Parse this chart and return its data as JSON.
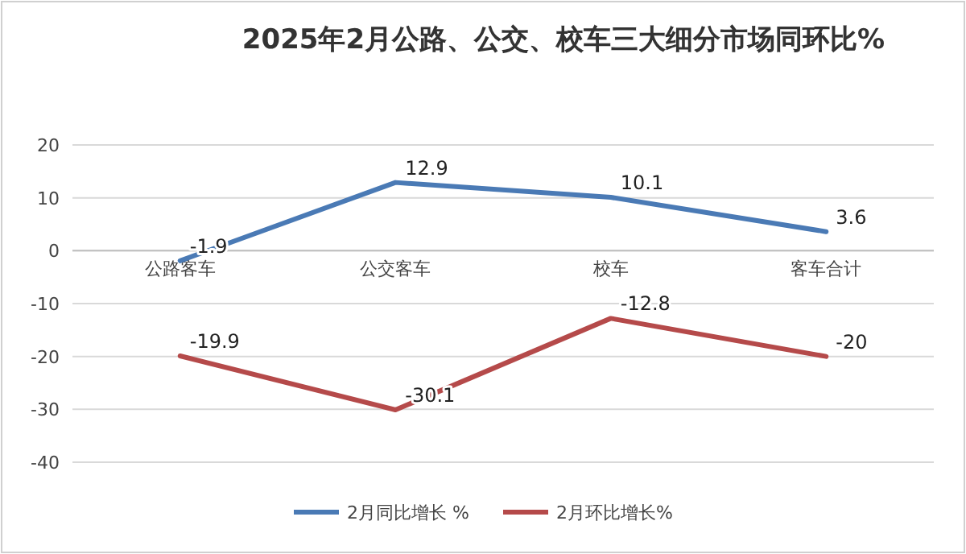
{
  "chart_data": {
    "type": "line",
    "title": "2025年2月公路、公交、校车三大细分市场同环比%",
    "categories": [
      "公路客车",
      "公交客车",
      "校车",
      "客车合计"
    ],
    "series": [
      {
        "name": "2月同比增长 %",
        "color": "#4a7ab5",
        "values": [
          -1.9,
          12.9,
          10.1,
          3.6
        ]
      },
      {
        "name": "2月环比增长%",
        "color": "#b54a4a",
        "values": [
          -19.9,
          -30.1,
          -12.8,
          -20
        ]
      }
    ],
    "ylim": [
      -40,
      20
    ],
    "yticks": [
      -40,
      -30,
      -20,
      -10,
      0,
      10,
      20
    ],
    "grid": "y",
    "legend": "bottom",
    "data_labels": true,
    "marker": "none",
    "line_style": "solid"
  }
}
